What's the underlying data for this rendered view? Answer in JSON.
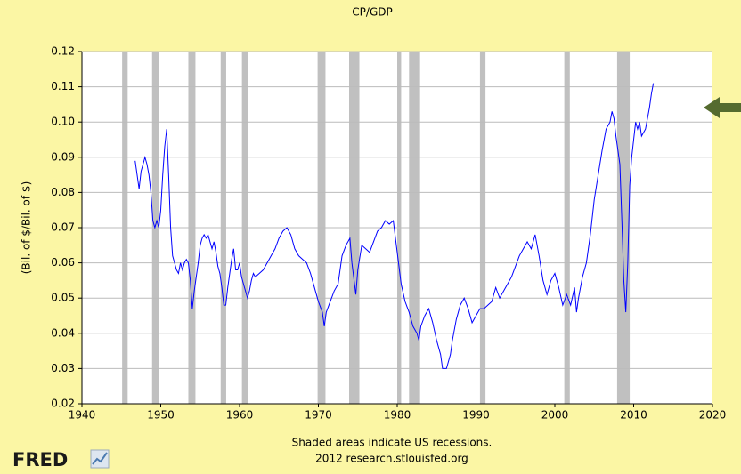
{
  "chart_data": {
    "type": "line",
    "title": "CP/GDP",
    "y_label": "(Bil. of $/Bil. of $)",
    "notes": [
      "Shaded areas indicate US recessions.",
      "2012 research.stlouisfed.org"
    ],
    "logo": "FRED",
    "xlim": [
      1940,
      2020
    ],
    "xticks": [
      1940,
      1950,
      1960,
      1970,
      1980,
      1990,
      2000,
      2010,
      2020
    ],
    "ylim": [
      0.02,
      0.12
    ],
    "yticks": [
      0.02,
      0.03,
      0.04,
      0.05,
      0.06,
      0.07,
      0.08,
      0.09,
      {
        "value": 0.1,
        "label": "0.10"
      },
      0.11,
      0.12
    ],
    "grid": true,
    "recession_color": "#c0c0c0",
    "recessions": [
      [
        1945.1,
        1945.8
      ],
      [
        1948.9,
        1949.8
      ],
      [
        1953.5,
        1954.4
      ],
      [
        1957.6,
        1958.3
      ],
      [
        1960.3,
        1961.1
      ],
      [
        1969.9,
        1970.9
      ],
      [
        1973.9,
        1975.2
      ],
      [
        1980.0,
        1980.5
      ],
      [
        1981.5,
        1982.9
      ],
      [
        1990.5,
        1991.2
      ],
      [
        2001.2,
        2001.9
      ],
      [
        2007.9,
        2009.5
      ]
    ],
    "series": [
      {
        "name": "CP/GDP",
        "color": "#0000ff",
        "x": [
          1946.75,
          1947,
          1947.25,
          1947.5,
          1947.75,
          1948,
          1948.25,
          1948.5,
          1948.75,
          1949,
          1949.25,
          1949.5,
          1949.75,
          1950,
          1950.25,
          1950.5,
          1950.75,
          1951,
          1951.25,
          1951.5,
          1951.75,
          1952,
          1952.25,
          1952.5,
          1952.75,
          1953,
          1953.25,
          1953.5,
          1953.75,
          1954,
          1954.25,
          1954.5,
          1954.75,
          1955,
          1955.25,
          1955.5,
          1955.75,
          1956,
          1956.25,
          1956.5,
          1956.75,
          1957,
          1957.25,
          1957.5,
          1957.75,
          1958,
          1958.25,
          1958.5,
          1958.75,
          1959,
          1959.25,
          1959.5,
          1959.75,
          1960,
          1960.25,
          1960.5,
          1960.75,
          1961,
          1961.25,
          1961.5,
          1961.75,
          1962,
          1962.5,
          1963,
          1963.5,
          1964,
          1964.5,
          1965,
          1965.5,
          1966,
          1966.5,
          1967,
          1967.5,
          1968,
          1968.5,
          1969,
          1969.5,
          1970,
          1970.5,
          1970.75,
          1971,
          1971.5,
          1972,
          1972.5,
          1973,
          1973.5,
          1974,
          1974.25,
          1974.75,
          1975,
          1975.5,
          1976,
          1976.5,
          1977,
          1977.5,
          1978,
          1978.5,
          1979,
          1979.5,
          1980,
          1980.5,
          1981,
          1981.5,
          1982,
          1982.5,
          1982.75,
          1983,
          1983.5,
          1984,
          1984.5,
          1985,
          1985.5,
          1985.75,
          1986.25,
          1986.75,
          1987,
          1987.5,
          1988,
          1988.5,
          1989,
          1989.5,
          1990,
          1990.5,
          1991,
          1991.5,
          1992,
          1992.5,
          1993,
          1993.5,
          1994,
          1994.5,
          1995,
          1995.5,
          1996,
          1996.5,
          1997,
          1997.5,
          1998,
          1998.5,
          1999,
          1999.5,
          2000,
          2000.5,
          2001,
          2001.5,
          2002,
          2002.5,
          2002.75,
          2003,
          2003.5,
          2004,
          2004.5,
          2005,
          2005.5,
          2006,
          2006.5,
          2007,
          2007.25,
          2007.5,
          2007.75,
          2008,
          2008.25,
          2008.5,
          2008.75,
          2009,
          2009.25,
          2009.5,
          2009.75,
          2010,
          2010.25,
          2010.5,
          2010.75,
          2011,
          2011.5,
          2012,
          2012.25,
          2012.5
        ],
        "values": [
          0.089,
          0.085,
          0.081,
          0.086,
          0.088,
          0.09,
          0.088,
          0.085,
          0.08,
          0.072,
          0.07,
          0.072,
          0.07,
          0.075,
          0.085,
          0.093,
          0.098,
          0.085,
          0.07,
          0.062,
          0.06,
          0.058,
          0.057,
          0.06,
          0.058,
          0.06,
          0.061,
          0.06,
          0.055,
          0.047,
          0.052,
          0.056,
          0.06,
          0.065,
          0.067,
          0.068,
          0.067,
          0.068,
          0.066,
          0.064,
          0.066,
          0.063,
          0.059,
          0.057,
          0.053,
          0.048,
          0.048,
          0.053,
          0.057,
          0.061,
          0.064,
          0.058,
          0.058,
          0.06,
          0.056,
          0.054,
          0.052,
          0.05,
          0.052,
          0.055,
          0.057,
          0.056,
          0.057,
          0.058,
          0.06,
          0.062,
          0.064,
          0.067,
          0.069,
          0.07,
          0.068,
          0.064,
          0.062,
          0.061,
          0.06,
          0.057,
          0.053,
          0.049,
          0.046,
          0.042,
          0.046,
          0.049,
          0.052,
          0.054,
          0.062,
          0.065,
          0.067,
          0.06,
          0.051,
          0.058,
          0.065,
          0.064,
          0.063,
          0.066,
          0.069,
          0.07,
          0.072,
          0.071,
          0.072,
          0.063,
          0.054,
          0.049,
          0.046,
          0.042,
          0.04,
          0.038,
          0.042,
          0.045,
          0.047,
          0.043,
          0.038,
          0.034,
          0.03,
          0.03,
          0.034,
          0.038,
          0.044,
          0.048,
          0.05,
          0.047,
          0.043,
          0.045,
          0.047,
          0.047,
          0.048,
          0.049,
          0.053,
          0.05,
          0.052,
          0.054,
          0.056,
          0.059,
          0.062,
          0.064,
          0.066,
          0.064,
          0.068,
          0.062,
          0.055,
          0.051,
          0.055,
          0.057,
          0.053,
          0.048,
          0.051,
          0.048,
          0.053,
          0.046,
          0.05,
          0.056,
          0.06,
          0.068,
          0.078,
          0.085,
          0.092,
          0.098,
          0.1,
          0.103,
          0.101,
          0.096,
          0.092,
          0.088,
          0.072,
          0.055,
          0.046,
          0.06,
          0.082,
          0.09,
          0.095,
          0.1,
          0.098,
          0.1,
          0.096,
          0.098,
          0.104,
          0.108,
          0.111
        ]
      }
    ]
  }
}
